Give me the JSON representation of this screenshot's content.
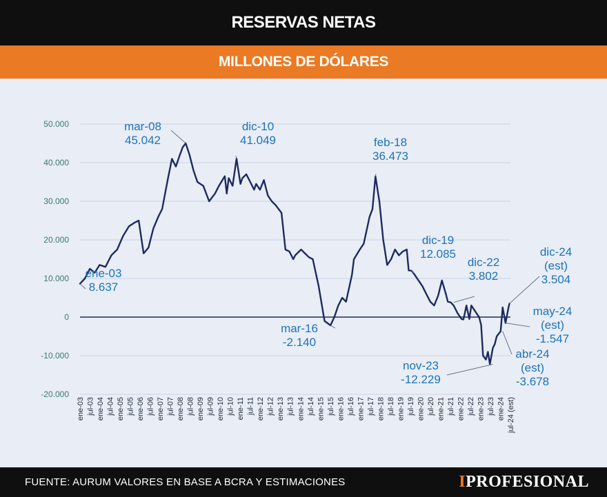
{
  "header": {
    "title": "RESERVAS NETAS",
    "subtitle": "MILLONES DE DÓLARES"
  },
  "footer": {
    "source": "FUENTE: AURUM VALORES EN BASE A BCRA Y ESTIMACIONES",
    "brand_mark": "I",
    "brand_rest": "PROFESIONAL"
  },
  "colors": {
    "line": "#1c2a5e",
    "tick": "#3a7a6a",
    "annotation": "#1b74b8",
    "header_bg": "#0f0f10",
    "accent": "#ea7a24",
    "background": "#e9edf5"
  },
  "chart_data": {
    "type": "line",
    "title": "RESERVAS NETAS",
    "subtitle": "MILLONES DE DÓLARES",
    "ylim": [
      -20000,
      50000
    ],
    "yticks": [
      50000,
      40000,
      30000,
      20000,
      10000,
      0,
      -10000,
      -20000
    ],
    "ytick_labels": [
      "50.000",
      "40.000",
      "30.000",
      "20.000",
      "10.000",
      "0",
      "-10.000",
      "-20.000"
    ],
    "x_range": [
      2003.0,
      2025.0
    ],
    "xtick_labels": [
      "ene-03",
      "jul-03",
      "ene-04",
      "jul-04",
      "ene-05",
      "jul-05",
      "ene-06",
      "jul-06",
      "ene-07",
      "jul-07",
      "ene-08",
      "jul-08",
      "ene-09",
      "jul-09",
      "ene-10",
      "jul-10",
      "ene-11",
      "jul-11",
      "ene-12",
      "jul-12",
      "ene-13",
      "jul-13",
      "ene-14",
      "jul-14",
      "ene-15",
      "jul-15",
      "ene-16",
      "jul-16",
      "ene-17",
      "jul-17",
      "ene-18",
      "jul-18",
      "ene-19",
      "jul-19",
      "ene-20",
      "jul-20",
      "ene-21",
      "jul-21",
      "ene-22",
      "jul-22",
      "ene-23",
      "jul-23",
      "ene-24",
      "jul-24 (est)"
    ],
    "grid": "horizontal",
    "legend": "none",
    "series": [
      {
        "x": [
          2003.0,
          2003.25,
          2003.5,
          2003.75,
          2004.0,
          2004.3,
          2004.6,
          2004.9,
          2005.2,
          2005.5,
          2005.8,
          2006.0,
          2006.25,
          2006.5,
          2006.6,
          2006.75,
          2007.0,
          2007.2,
          2007.5,
          2007.7,
          2007.9,
          2008.1,
          2008.25,
          2008.4,
          2008.6,
          2008.8,
          2009.0,
          2009.3,
          2009.6,
          2009.9,
          2010.1,
          2010.4,
          2010.5,
          2010.6,
          2010.8,
          2011.0,
          2011.2,
          2011.3,
          2011.5,
          2011.7,
          2011.9,
          2012.0,
          2012.2,
          2012.4,
          2012.6,
          2012.8,
          2013.0,
          2013.3,
          2013.5,
          2013.7,
          2013.9,
          2014.0,
          2014.3,
          2014.5,
          2014.7,
          2014.9,
          2015.2,
          2015.5,
          2015.8,
          2016.0,
          2016.2,
          2016.4,
          2016.6,
          2016.9,
          2017.0,
          2017.3,
          2017.5,
          2017.8,
          2017.95,
          2018.1,
          2018.3,
          2018.5,
          2018.7,
          2018.9,
          2019.1,
          2019.3,
          2019.5,
          2019.7,
          2019.8,
          2019.95,
          2020.1,
          2020.3,
          2020.5,
          2020.7,
          2020.9,
          2021.1,
          2021.3,
          2021.5,
          2021.7,
          2021.8,
          2021.95,
          2022.1,
          2022.3,
          2022.5,
          2022.6,
          2022.75,
          2022.9,
          2023.0,
          2023.2,
          2023.4,
          2023.5,
          2023.6,
          2023.75,
          2023.85,
          2023.95,
          2024.1,
          2024.2,
          2024.3,
          2024.5,
          2024.6,
          2024.75,
          2024.9,
          2024.95
        ],
        "y": [
          8637,
          10000,
          12500,
          11500,
          13500,
          13000,
          16000,
          17500,
          21000,
          23500,
          24500,
          25000,
          16500,
          18000,
          20000,
          23000,
          26000,
          28000,
          36000,
          41000,
          39000,
          42000,
          44000,
          45042,
          42000,
          38000,
          35000,
          34000,
          30000,
          32000,
          34000,
          36500,
          32000,
          36000,
          34000,
          41049,
          34500,
          36000,
          37000,
          35000,
          33000,
          34500,
          33000,
          35500,
          31500,
          30000,
          29000,
          27000,
          17500,
          17000,
          15000,
          16000,
          17500,
          16500,
          15500,
          15000,
          8000,
          -1000,
          -2140,
          0,
          3000,
          5000,
          4000,
          11000,
          15000,
          17500,
          19000,
          26000,
          28000,
          36473,
          30000,
          20000,
          13500,
          15000,
          17500,
          16000,
          17000,
          17500,
          12085,
          12000,
          11000,
          9500,
          8000,
          6000,
          4000,
          3000,
          5500,
          9500,
          6000,
          4000,
          3802,
          3000,
          1000,
          -500,
          -600,
          3000,
          -500,
          3000,
          1500,
          0,
          -2000,
          -10000,
          -11000,
          -9000,
          -12229,
          -8000,
          -7000,
          -5000,
          -3678,
          2500,
          -1547,
          2500,
          3504
        ]
      }
    ],
    "annotations": [
      {
        "line1": "ene-03",
        "line2": "8.637",
        "x": 2003.0,
        "y": 8637
      },
      {
        "line1": "mar-08",
        "line2": "45.042",
        "x": 2008.4,
        "y": 45042
      },
      {
        "line1": "dic-10",
        "line2": "41.049",
        "x": 2011.0,
        "y": 41049
      },
      {
        "line1": "mar-16",
        "line2": "-2.140",
        "x": 2015.8,
        "y": -2140
      },
      {
        "line1": "feb-18",
        "line2": "36.473",
        "x": 2018.1,
        "y": 36473
      },
      {
        "line1": "dic-19",
        "line2": "12.085",
        "x": 2019.95,
        "y": 12085
      },
      {
        "line1": "dic-22",
        "line2": "3.802",
        "x": 2022.1,
        "y": 3802
      },
      {
        "line1": "nov-23",
        "line2": "-12.229",
        "x": 2024.1,
        "y": -12229
      },
      {
        "line1": "dic-24",
        "line2": "(est)",
        "line3": "3.504",
        "x": 2024.95,
        "y": 3504
      },
      {
        "line1": "may-24",
        "line2": "(est)",
        "line3": "-1.547",
        "x": 2024.75,
        "y": -1547
      },
      {
        "line1": "abr-24",
        "line2": "(est)",
        "line3": "-3.678",
        "x": 2024.6,
        "y": -3678
      }
    ]
  }
}
